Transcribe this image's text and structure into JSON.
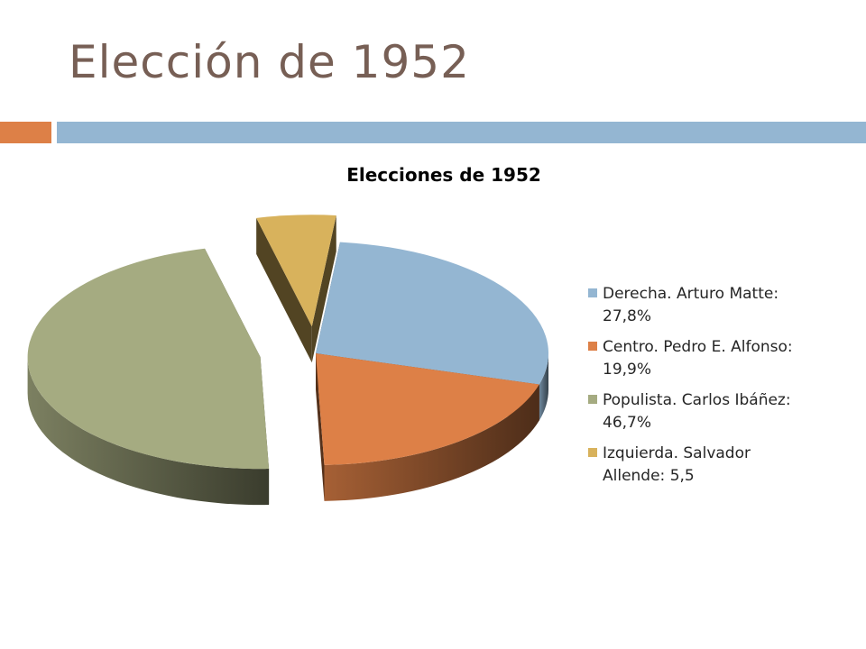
{
  "slide": {
    "title": "Elección de 1952"
  },
  "chart_data": {
    "type": "pie",
    "title": "Elecciones de 1952",
    "legend_position": "right",
    "slices": [
      {
        "label_lines": [
          "Derecha. Arturo Matte:",
          "27,8%"
        ],
        "value": 27.8,
        "color": "#94B6D2",
        "exploded": false
      },
      {
        "label_lines": [
          "Centro. Pedro E. Alfonso:",
          "19,9%"
        ],
        "value": 19.9,
        "color": "#DD8047",
        "exploded": false
      },
      {
        "label_lines": [
          "Populista. Carlos Ibáñez:",
          "46,7%"
        ],
        "value": 46.7,
        "color": "#A5AB81",
        "exploded": true
      },
      {
        "label_lines": [
          "Izquierda. Salvador",
          "Allende: 5,5"
        ],
        "value": 5.5,
        "color": "#D8B25C",
        "exploded": true
      }
    ]
  }
}
